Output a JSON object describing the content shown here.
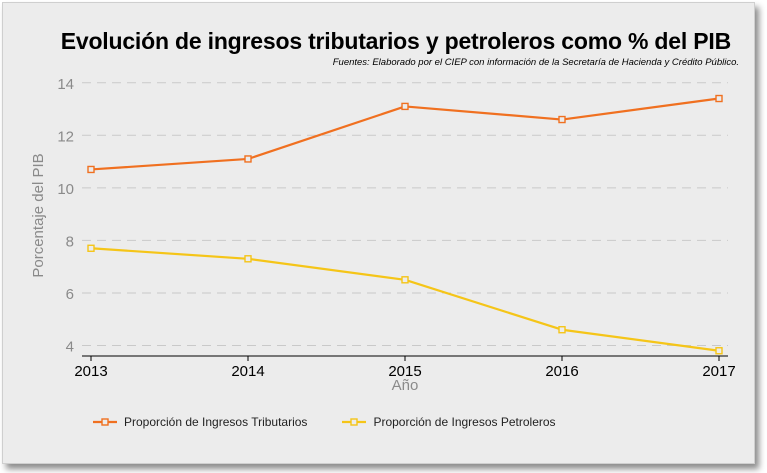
{
  "chart_data": {
    "type": "line",
    "title": "Evolución de ingresos tributarios y petroleros como % del PIB",
    "subtitle": "Fuentes: Elaborado por el CIEP con información de la Secretaría de Hacienda y Crédito Público.",
    "xlabel": "Año",
    "ylabel": "Porcentaje del PIB",
    "x": [
      2013,
      2014,
      2015,
      2016,
      2017
    ],
    "x_tick_labels": [
      "2013",
      "2014",
      "2015",
      "2016",
      "2017"
    ],
    "y_ticks": [
      4,
      6,
      8,
      10,
      12,
      14
    ],
    "ylim": [
      3.6,
      14.6
    ],
    "grid": "horizontal dashed",
    "legend_position": "bottom",
    "series": [
      {
        "name": "Proporción de Ingresos Tributarios",
        "color": "#f07020",
        "values": [
          10.7,
          11.1,
          13.1,
          12.6,
          13.4
        ]
      },
      {
        "name": "Proporción de Ingresos Petroleros",
        "color": "#f5c518",
        "values": [
          7.7,
          7.3,
          6.5,
          4.6,
          3.8
        ]
      }
    ]
  }
}
